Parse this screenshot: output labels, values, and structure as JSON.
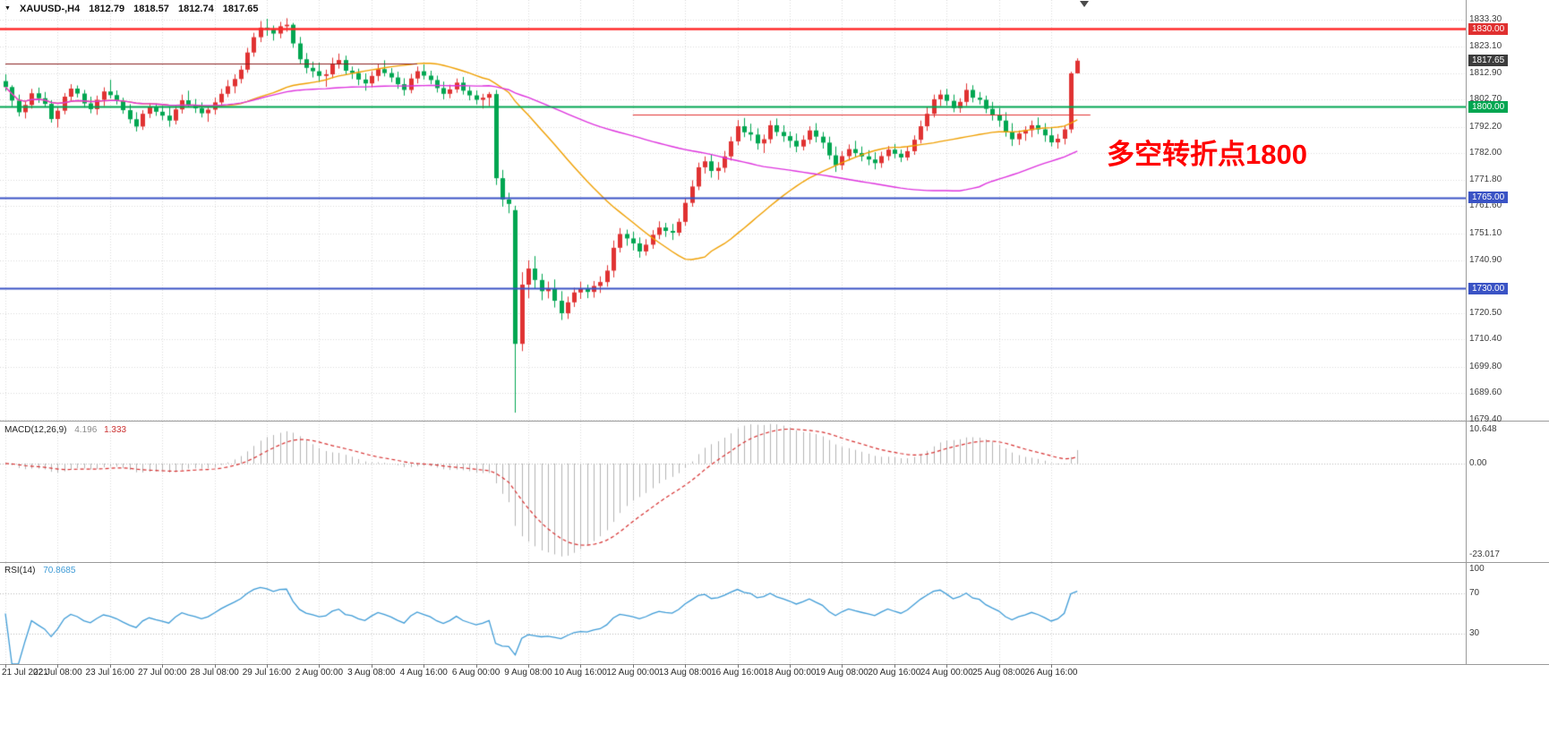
{
  "window": {
    "bg": "#ffffff"
  },
  "header": {
    "collapse_icon": "▼",
    "symbol": "XAUUSD-,H4",
    "open": "1812.79",
    "high": "1818.57",
    "low": "1812.74",
    "close": "1817.65"
  },
  "annotation": {
    "text": "多空转折点1800",
    "color": "#ff0000"
  },
  "indicators": {
    "macd": {
      "label": "MACD(12,26,9)",
      "value_main": "4.196",
      "value_signal": "1.333",
      "axis_top": "10.648",
      "axis_zero": "0.00",
      "axis_bottom": "-23.017"
    },
    "rsi": {
      "label": "RSI(14)",
      "value": "70.8685",
      "axis_top": "100",
      "axis_upper": "70",
      "axis_lower": "30",
      "levels": [
        70,
        30
      ]
    }
  },
  "price_axis": {
    "ticks": [
      1833.3,
      1823.1,
      1812.9,
      1802.7,
      1792.2,
      1782.0,
      1771.8,
      1761.6,
      1751.1,
      1740.9,
      1720.5,
      1710.4,
      1699.8,
      1689.6,
      1679.4
    ],
    "tags": [
      {
        "label": "1830.00",
        "price": 1830.0,
        "bg": "#e03030"
      },
      {
        "label": "1817.65",
        "price": 1817.65,
        "bg": "#3c3c3c"
      },
      {
        "label": "1800.00",
        "price": 1800.0,
        "bg": "#00a651"
      },
      {
        "label": "1765.00",
        "price": 1765.0,
        "bg": "#3a53c5"
      },
      {
        "label": "1730.00",
        "price": 1730.0,
        "bg": "#3a53c5"
      }
    ]
  },
  "hlines": [
    {
      "price": 1830.0,
      "color": "#ff2a2a",
      "width": 2.5
    },
    {
      "price": 1800.0,
      "color": "#00a651",
      "width": 2
    },
    {
      "price": 1765.0,
      "color": "#3a53c5",
      "width": 2
    },
    {
      "price": 1730.0,
      "color": "#3a53c5",
      "width": 2
    },
    {
      "price": 1816.4,
      "color": "#8b2020",
      "width": 1.2,
      "from_bar": 0,
      "to_bar": 63
    },
    {
      "price": 1796.8,
      "color": "#e03030",
      "width": 1.2,
      "from_bar": 96,
      "to_bar": 166
    }
  ],
  "time_axis": {
    "labels": [
      {
        "text": "21 Jul 2021",
        "bar": 0
      },
      {
        "text": "22 Jul 08:00",
        "bar": 8
      },
      {
        "text": "23 Jul 16:00",
        "bar": 16
      },
      {
        "text": "27 Jul 00:00",
        "bar": 24
      },
      {
        "text": "28 Jul 08:00",
        "bar": 32
      },
      {
        "text": "29 Jul 16:00",
        "bar": 40
      },
      {
        "text": "2 Aug 00:00",
        "bar": 48
      },
      {
        "text": "3 Aug 08:00",
        "bar": 56
      },
      {
        "text": "4 Aug 16:00",
        "bar": 64
      },
      {
        "text": "6 Aug 00:00",
        "bar": 72
      },
      {
        "text": "9 Aug 08:00",
        "bar": 80
      },
      {
        "text": "10 Aug 16:00",
        "bar": 88
      },
      {
        "text": "12 Aug 00:00",
        "bar": 96
      },
      {
        "text": "13 Aug 08:00",
        "bar": 104
      },
      {
        "text": "16 Aug 16:00",
        "bar": 112
      },
      {
        "text": "18 Aug 00:00",
        "bar": 120
      },
      {
        "text": "19 Aug 08:00",
        "bar": 128
      },
      {
        "text": "20 Aug 16:00",
        "bar": 136
      },
      {
        "text": "24 Aug 00:00",
        "bar": 144
      },
      {
        "text": "25 Aug 08:00",
        "bar": 152
      },
      {
        "text": "26 Aug 16:00",
        "bar": 160
      }
    ]
  },
  "chart_data": {
    "type": "candlestick",
    "symbol": "XAUUSD-",
    "timeframe": "H4",
    "visible_price_range": [
      1679.0,
      1841.0
    ],
    "colors": {
      "up": "#e03232",
      "down": "#00a651",
      "grid": "#dadada",
      "macd_hist": "#b3b3b3",
      "macd_signal": "#d63030",
      "rsi_line": "#3e9bd6",
      "level_line": "#b8b8b8"
    },
    "overlays": [
      {
        "name": "ma-fast",
        "type": "sma",
        "period": 30,
        "color": "#ef9f00"
      },
      {
        "name": "ma-slow",
        "type": "sma",
        "period": 72,
        "color": "#dd33dd"
      }
    ],
    "panels": [
      {
        "name": "macd",
        "params": "12,26,9"
      },
      {
        "name": "rsi",
        "params": "14"
      }
    ],
    "candles": [
      [
        1809.8,
        1812.4,
        1806.0,
        1807.5
      ],
      [
        1807.5,
        1808.2,
        1800.1,
        1802.3
      ],
      [
        1802.3,
        1804.6,
        1796.2,
        1797.8
      ],
      [
        1797.8,
        1801.9,
        1795.4,
        1800.6
      ],
      [
        1800.6,
        1806.8,
        1799.2,
        1805.1
      ],
      [
        1805.1,
        1807.3,
        1801.4,
        1803.2
      ],
      [
        1803.2,
        1805.6,
        1799.8,
        1801.0
      ],
      [
        1801.0,
        1802.4,
        1793.8,
        1795.2
      ],
      [
        1795.2,
        1799.6,
        1791.9,
        1798.4
      ],
      [
        1798.4,
        1805.2,
        1797.0,
        1803.8
      ],
      [
        1803.8,
        1808.6,
        1802.2,
        1806.9
      ],
      [
        1806.9,
        1808.1,
        1803.5,
        1805.0
      ],
      [
        1805.0,
        1806.4,
        1799.6,
        1801.2
      ],
      [
        1801.2,
        1803.8,
        1797.4,
        1799.0
      ],
      [
        1799.0,
        1804.2,
        1796.8,
        1802.6
      ],
      [
        1802.6,
        1807.4,
        1800.2,
        1805.8
      ],
      [
        1805.8,
        1810.3,
        1803.1,
        1804.4
      ],
      [
        1804.4,
        1806.2,
        1800.8,
        1802.1
      ],
      [
        1802.1,
        1803.4,
        1797.2,
        1798.6
      ],
      [
        1798.6,
        1800.9,
        1793.5,
        1795.1
      ],
      [
        1795.1,
        1797.8,
        1790.4,
        1792.3
      ],
      [
        1792.3,
        1798.6,
        1791.0,
        1797.2
      ],
      [
        1797.2,
        1801.4,
        1795.6,
        1799.8
      ],
      [
        1799.8,
        1801.2,
        1796.4,
        1798.0
      ],
      [
        1798.0,
        1800.3,
        1794.7,
        1796.5
      ],
      [
        1796.5,
        1799.8,
        1792.2,
        1794.6
      ],
      [
        1794.6,
        1800.2,
        1793.1,
        1798.9
      ],
      [
        1798.9,
        1804.6,
        1797.3,
        1802.4
      ],
      [
        1802.4,
        1806.1,
        1799.8,
        1800.7
      ],
      [
        1800.7,
        1802.9,
        1797.5,
        1799.3
      ],
      [
        1799.3,
        1801.6,
        1795.8,
        1797.4
      ],
      [
        1797.4,
        1800.2,
        1794.1,
        1798.8
      ],
      [
        1798.8,
        1803.4,
        1796.9,
        1801.6
      ],
      [
        1801.6,
        1806.8,
        1800.2,
        1804.9
      ],
      [
        1804.9,
        1810.2,
        1803.6,
        1807.8
      ],
      [
        1807.8,
        1812.4,
        1805.1,
        1810.6
      ],
      [
        1810.6,
        1815.8,
        1808.9,
        1814.2
      ],
      [
        1814.2,
        1822.6,
        1813.0,
        1820.8
      ],
      [
        1820.8,
        1828.4,
        1819.2,
        1826.7
      ],
      [
        1826.7,
        1832.9,
        1824.8,
        1830.4
      ],
      [
        1830.4,
        1833.8,
        1827.2,
        1829.6
      ],
      [
        1829.6,
        1831.2,
        1825.4,
        1828.1
      ],
      [
        1828.1,
        1832.6,
        1826.3,
        1830.9
      ],
      [
        1830.9,
        1834.0,
        1828.8,
        1831.5
      ],
      [
        1831.5,
        1832.2,
        1822.6,
        1824.3
      ],
      [
        1824.3,
        1826.8,
        1816.4,
        1818.2
      ],
      [
        1818.2,
        1820.6,
        1812.8,
        1814.9
      ],
      [
        1814.9,
        1817.3,
        1811.2,
        1813.6
      ],
      [
        1813.6,
        1816.9,
        1809.4,
        1811.8
      ],
      [
        1811.8,
        1814.2,
        1807.6,
        1812.4
      ],
      [
        1812.4,
        1818.8,
        1810.9,
        1816.2
      ],
      [
        1816.2,
        1820.4,
        1814.6,
        1817.9
      ],
      [
        1817.9,
        1819.6,
        1812.3,
        1813.8
      ],
      [
        1813.8,
        1815.4,
        1810.6,
        1812.9
      ],
      [
        1812.9,
        1814.6,
        1808.2,
        1810.4
      ],
      [
        1810.4,
        1812.8,
        1806.1,
        1808.9
      ],
      [
        1808.9,
        1813.6,
        1807.4,
        1811.8
      ],
      [
        1811.8,
        1816.2,
        1809.8,
        1814.4
      ],
      [
        1814.4,
        1817.8,
        1811.6,
        1812.9
      ],
      [
        1812.9,
        1814.8,
        1809.4,
        1811.2
      ],
      [
        1811.2,
        1813.4,
        1806.8,
        1808.6
      ],
      [
        1808.6,
        1810.9,
        1804.2,
        1806.4
      ],
      [
        1806.4,
        1812.6,
        1805.1,
        1810.8
      ],
      [
        1810.8,
        1815.4,
        1808.9,
        1813.6
      ],
      [
        1813.6,
        1816.2,
        1810.4,
        1811.9
      ],
      [
        1811.9,
        1813.8,
        1808.6,
        1810.2
      ],
      [
        1810.2,
        1811.9,
        1805.4,
        1807.1
      ],
      [
        1807.1,
        1809.6,
        1802.8,
        1804.9
      ],
      [
        1804.9,
        1808.4,
        1803.2,
        1806.6
      ],
      [
        1806.6,
        1810.8,
        1805.3,
        1809.2
      ],
      [
        1809.2,
        1811.4,
        1804.6,
        1806.1
      ],
      [
        1806.1,
        1807.8,
        1802.4,
        1804.3
      ],
      [
        1804.3,
        1806.2,
        1800.8,
        1802.6
      ],
      [
        1802.6,
        1804.9,
        1799.2,
        1803.4
      ],
      [
        1803.4,
        1805.6,
        1800.1,
        1804.8
      ],
      [
        1804.8,
        1806.4,
        1769.8,
        1772.4
      ],
      [
        1772.4,
        1775.6,
        1761.4,
        1764.2
      ],
      [
        1764.2,
        1766.8,
        1758.9,
        1762.5
      ],
      [
        1760.1,
        1761.8,
        1682.1,
        1708.6
      ],
      [
        1708.6,
        1736.2,
        1705.8,
        1731.4
      ],
      [
        1731.4,
        1740.8,
        1726.2,
        1737.6
      ],
      [
        1737.6,
        1742.4,
        1729.8,
        1733.2
      ],
      [
        1733.2,
        1735.6,
        1725.4,
        1728.9
      ],
      [
        1728.9,
        1732.6,
        1726.1,
        1729.8
      ],
      [
        1729.8,
        1733.4,
        1722.6,
        1725.2
      ],
      [
        1725.2,
        1728.9,
        1717.8,
        1720.4
      ],
      [
        1720.4,
        1726.8,
        1718.2,
        1724.6
      ],
      [
        1724.6,
        1730.2,
        1722.8,
        1728.4
      ],
      [
        1728.4,
        1732.6,
        1725.9,
        1729.8
      ],
      [
        1729.8,
        1731.4,
        1726.2,
        1728.6
      ],
      [
        1728.6,
        1732.8,
        1726.4,
        1730.9
      ],
      [
        1730.9,
        1734.6,
        1728.2,
        1732.4
      ],
      [
        1732.4,
        1738.9,
        1730.6,
        1736.8
      ],
      [
        1736.8,
        1748.4,
        1734.2,
        1745.6
      ],
      [
        1745.6,
        1753.2,
        1743.8,
        1750.9
      ],
      [
        1750.9,
        1752.6,
        1746.4,
        1749.2
      ],
      [
        1749.2,
        1751.8,
        1744.6,
        1747.3
      ],
      [
        1747.3,
        1749.6,
        1741.8,
        1744.2
      ],
      [
        1744.2,
        1748.9,
        1742.6,
        1746.8
      ],
      [
        1746.8,
        1752.4,
        1745.2,
        1750.6
      ],
      [
        1750.6,
        1755.8,
        1748.9,
        1753.4
      ],
      [
        1753.4,
        1755.2,
        1749.8,
        1752.1
      ],
      [
        1752.1,
        1754.8,
        1748.6,
        1751.4
      ],
      [
        1751.4,
        1756.9,
        1750.2,
        1755.6
      ],
      [
        1755.6,
        1764.8,
        1754.1,
        1762.9
      ],
      [
        1762.9,
        1771.6,
        1761.4,
        1769.2
      ],
      [
        1769.2,
        1778.4,
        1767.8,
        1776.6
      ],
      [
        1776.6,
        1780.8,
        1774.2,
        1778.9
      ],
      [
        1778.9,
        1781.4,
        1772.6,
        1775.2
      ],
      [
        1775.2,
        1778.6,
        1771.8,
        1776.4
      ],
      [
        1776.4,
        1782.9,
        1774.6,
        1780.8
      ],
      [
        1780.8,
        1788.4,
        1779.2,
        1786.6
      ],
      [
        1786.6,
        1794.8,
        1785.1,
        1792.4
      ],
      [
        1792.4,
        1795.6,
        1788.2,
        1790.1
      ],
      [
        1790.1,
        1793.4,
        1786.8,
        1789.2
      ],
      [
        1789.2,
        1791.6,
        1783.4,
        1785.8
      ],
      [
        1785.8,
        1789.2,
        1782.1,
        1787.4
      ],
      [
        1787.4,
        1794.6,
        1785.8,
        1792.8
      ],
      [
        1792.8,
        1795.4,
        1788.6,
        1790.2
      ],
      [
        1790.2,
        1792.8,
        1786.4,
        1788.6
      ],
      [
        1788.6,
        1790.4,
        1784.2,
        1786.8
      ],
      [
        1786.8,
        1789.6,
        1782.4,
        1784.6
      ],
      [
        1784.6,
        1788.9,
        1783.1,
        1787.2
      ],
      [
        1787.2,
        1792.4,
        1785.6,
        1790.8
      ],
      [
        1790.8,
        1793.6,
        1786.2,
        1788.4
      ],
      [
        1788.4,
        1790.2,
        1783.8,
        1786.1
      ],
      [
        1786.1,
        1788.4,
        1779.6,
        1781.2
      ],
      [
        1781.2,
        1784.6,
        1774.8,
        1777.4
      ],
      [
        1777.4,
        1782.8,
        1775.6,
        1780.9
      ],
      [
        1780.9,
        1785.4,
        1779.2,
        1783.6
      ],
      [
        1783.6,
        1786.8,
        1780.4,
        1782.1
      ],
      [
        1782.1,
        1784.6,
        1778.9,
        1780.8
      ],
      [
        1780.8,
        1783.2,
        1777.4,
        1779.6
      ],
      [
        1779.6,
        1782.4,
        1775.8,
        1778.2
      ],
      [
        1778.2,
        1782.6,
        1776.4,
        1780.9
      ],
      [
        1780.9,
        1784.8,
        1779.2,
        1783.4
      ],
      [
        1783.4,
        1785.6,
        1780.1,
        1781.8
      ],
      [
        1781.8,
        1783.4,
        1778.6,
        1780.4
      ],
      [
        1780.4,
        1784.6,
        1779.2,
        1782.8
      ],
      [
        1782.8,
        1788.9,
        1781.4,
        1787.2
      ],
      [
        1787.2,
        1794.6,
        1785.8,
        1792.4
      ],
      [
        1792.4,
        1799.8,
        1790.6,
        1797.2
      ],
      [
        1797.2,
        1804.6,
        1795.8,
        1802.8
      ],
      [
        1802.8,
        1806.4,
        1800.2,
        1804.6
      ],
      [
        1804.6,
        1806.8,
        1800.4,
        1802.2
      ],
      [
        1802.2,
        1804.6,
        1797.8,
        1799.4
      ],
      [
        1799.4,
        1803.2,
        1797.6,
        1801.8
      ],
      [
        1801.8,
        1808.9,
        1800.2,
        1806.4
      ],
      [
        1806.4,
        1808.2,
        1801.6,
        1803.4
      ],
      [
        1803.4,
        1805.6,
        1800.8,
        1802.6
      ],
      [
        1802.6,
        1804.2,
        1797.4,
        1799.1
      ],
      [
        1799.1,
        1801.8,
        1794.6,
        1796.8
      ],
      [
        1796.8,
        1799.4,
        1792.2,
        1794.6
      ],
      [
        1794.6,
        1797.8,
        1788.4,
        1790.2
      ],
      [
        1790.2,
        1793.6,
        1784.8,
        1787.4
      ],
      [
        1787.4,
        1790.8,
        1785.2,
        1789.6
      ],
      [
        1789.6,
        1792.4,
        1786.8,
        1790.9
      ],
      [
        1790.9,
        1794.6,
        1788.2,
        1792.8
      ],
      [
        1792.8,
        1795.8,
        1789.4,
        1791.2
      ],
      [
        1791.2,
        1793.6,
        1786.4,
        1788.9
      ],
      [
        1788.9,
        1791.8,
        1784.6,
        1786.2
      ],
      [
        1786.2,
        1789.4,
        1783.8,
        1787.6
      ],
      [
        1787.6,
        1792.8,
        1785.4,
        1791.2
      ],
      [
        1791.2,
        1813.4,
        1789.8,
        1812.8
      ],
      [
        1812.79,
        1818.57,
        1812.74,
        1817.65
      ]
    ]
  }
}
